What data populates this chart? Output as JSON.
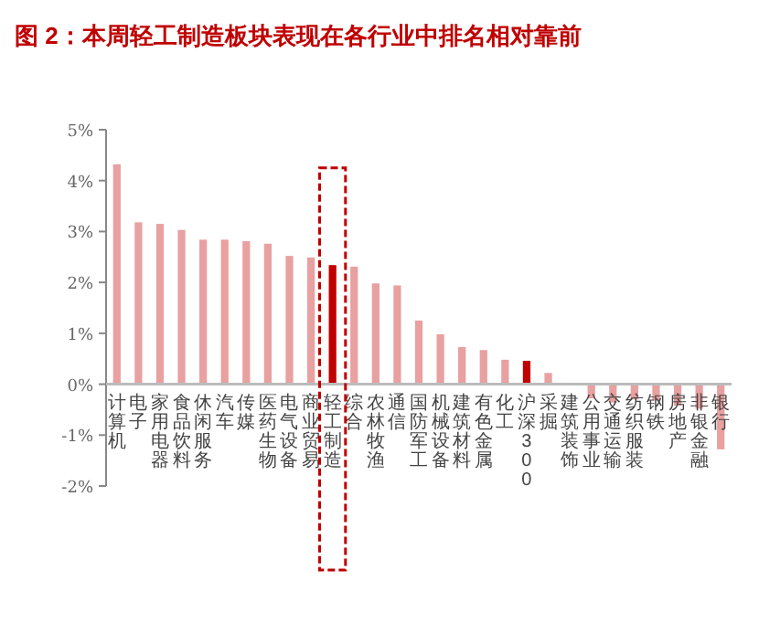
{
  "chart_data": {
    "type": "bar",
    "title": "图 2：本周轻工制造板块表现在各行业中排名相对靠前",
    "categories": [
      "计算机",
      "电子",
      "家用电器",
      "食品饮料",
      "休闲服务",
      "汽车",
      "传媒",
      "医药生物",
      "电气设备",
      "商业贸易",
      "轻工制造",
      "综合",
      "农林牧渔",
      "通信",
      "国防军工",
      "机械设备",
      "建筑材料",
      "有色金属",
      "化工",
      "沪深300",
      "采掘",
      "建筑装饰",
      "公用事业",
      "交通运输",
      "纺织服装",
      "钢铁",
      "房地产",
      "非银金融",
      "银行"
    ],
    "values": [
      4.32,
      3.18,
      3.15,
      3.03,
      2.84,
      2.84,
      2.81,
      2.76,
      2.52,
      2.49,
      2.34,
      2.31,
      1.98,
      1.94,
      1.25,
      0.98,
      0.73,
      0.67,
      0.48,
      0.46,
      0.22,
      -0.02,
      -0.28,
      -0.36,
      -0.3,
      -0.32,
      -0.42,
      -0.48,
      -1.28
    ],
    "colors": [
      "#e8a0a0",
      "#e8a0a0",
      "#e8a0a0",
      "#e8a0a0",
      "#e8a0a0",
      "#e8a0a0",
      "#e8a0a0",
      "#e8a0a0",
      "#e8a0a0",
      "#e8a0a0",
      "#c00000",
      "#e8a0a0",
      "#e8a0a0",
      "#e8a0a0",
      "#e8a0a0",
      "#e8a0a0",
      "#e8a0a0",
      "#e8a0a0",
      "#e8a0a0",
      "#c00000",
      "#e8a0a0",
      "#e8a0a0",
      "#e8a0a0",
      "#e8a0a0",
      "#e8a0a0",
      "#e8a0a0",
      "#e8a0a0",
      "#e8a0a0",
      "#e8a0a0"
    ],
    "ylim": [
      -2,
      5
    ],
    "yticks": [
      {
        "value": -2,
        "label": "-2%"
      },
      {
        "value": -1,
        "label": "-1%"
      },
      {
        "value": 0,
        "label": "0%"
      },
      {
        "value": 1,
        "label": "1%"
      },
      {
        "value": 2,
        "label": "2%"
      },
      {
        "value": 3,
        "label": "3%"
      },
      {
        "value": 4,
        "label": "4%"
      },
      {
        "value": 5,
        "label": "5%"
      }
    ],
    "legend": false
  }
}
